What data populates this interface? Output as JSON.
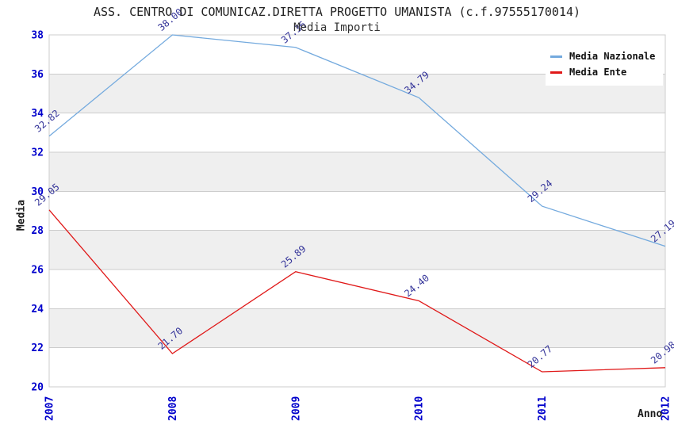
{
  "chart_data": {
    "type": "line",
    "title": "ASS. CENTRO DI COMUNICAZ.DIRETTA PROGETTO UMANISTA (c.f.97555170014)",
    "subtitle": "Media Importi",
    "xlabel": "Anno",
    "ylabel": "Media",
    "categories": [
      "2007",
      "2008",
      "2009",
      "2010",
      "2011",
      "2012"
    ],
    "series": [
      {
        "name": "Media Nazionale",
        "color": "#74AADE",
        "values": [
          32.82,
          38.0,
          37.36,
          34.79,
          29.24,
          27.19
        ]
      },
      {
        "name": "Media Ente",
        "color": "#E01818",
        "values": [
          29.05,
          21.7,
          25.89,
          24.4,
          20.77,
          20.98
        ]
      }
    ],
    "ylim": [
      20,
      38
    ],
    "y_ticks": [
      20,
      22,
      24,
      26,
      28,
      30,
      32,
      34,
      36,
      38
    ],
    "grid": true,
    "legend_position": "top-right",
    "colors": {
      "tick_label": "#0000CC",
      "point_label": "#333399",
      "grid_line": "#CCCCCC",
      "band_even": "#FFFFFF",
      "band_odd": "#EFEFEF",
      "plot_border": "#CCCCCC"
    }
  }
}
